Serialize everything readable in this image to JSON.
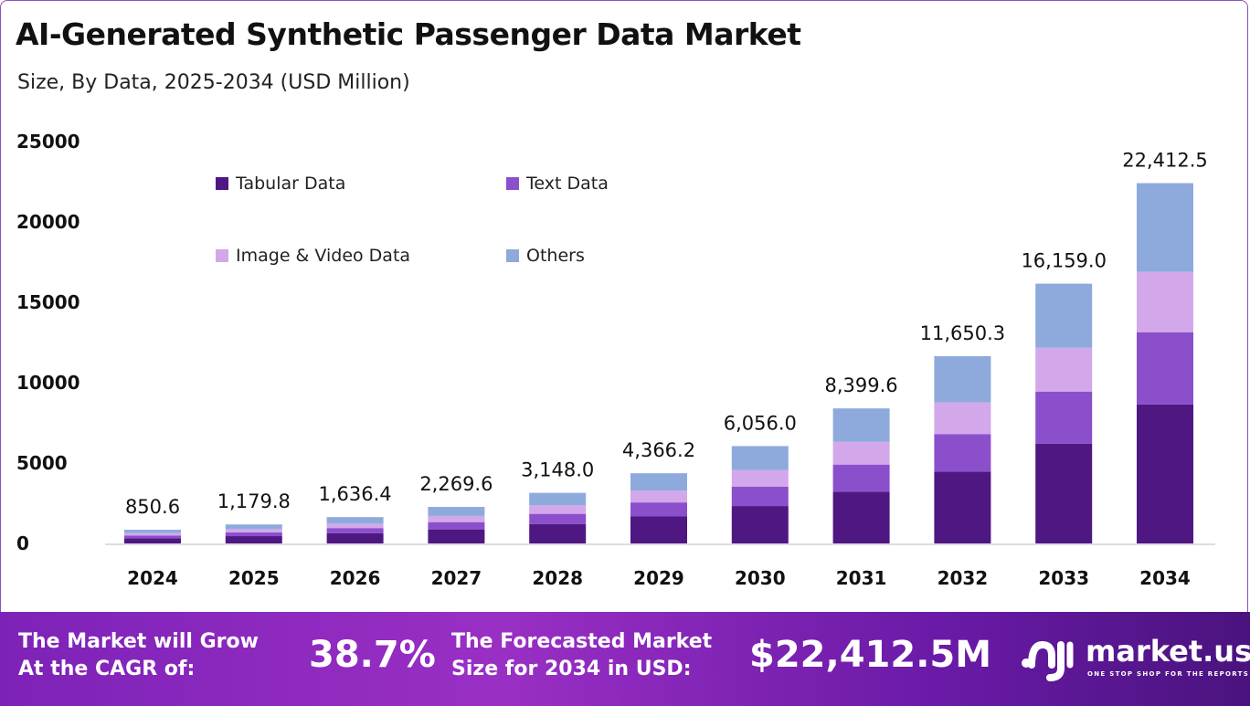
{
  "title": "AI-Generated Synthetic Passenger Data Market",
  "subtitle": "Size, By Data, 2025-2034 (USD Million)",
  "chart_data": {
    "type": "bar",
    "stacked": true,
    "categories": [
      "2024",
      "2025",
      "2026",
      "2027",
      "2028",
      "2029",
      "2030",
      "2031",
      "2032",
      "2033",
      "2034"
    ],
    "totals": [
      "850.6",
      "1,179.8",
      "1,636.4",
      "2,269.6",
      "3,148.0",
      "4,366.2",
      "6,056.0",
      "8,399.6",
      "11,650.3",
      "16,159.0",
      "22,412.5"
    ],
    "series": [
      {
        "name": "Tabular Data",
        "color": "#4e1782",
        "values": [
          326.6,
          453.0,
          628.4,
          871.5,
          1208.8,
          1676.6,
          2325.5,
          3225.4,
          4473.7,
          6210,
          8653
        ]
      },
      {
        "name": "Text Data",
        "color": "#8b4fcc",
        "values": [
          170.1,
          236.0,
          327.3,
          453.9,
          629.6,
          873.2,
          1211.2,
          1679.9,
          2330.1,
          3238,
          4489
        ]
      },
      {
        "name": "Image & Video Data",
        "color": "#d3a8ea",
        "values": [
          143.8,
          199.4,
          276.5,
          383.6,
          532.0,
          737.9,
          1023.5,
          1419.5,
          1968.9,
          2727,
          3750
        ]
      },
      {
        "name": "Others",
        "color": "#8eaadd",
        "values": [
          210.1,
          291.4,
          404.2,
          560.6,
          777.6,
          1078.5,
          1495.8,
          2074.8,
          2877.6,
          3984,
          5520.5
        ]
      }
    ],
    "yticks": [
      "0",
      "5000",
      "10000",
      "15000",
      "20000",
      "25000"
    ],
    "ylim": [
      0,
      25000
    ],
    "grid": false,
    "legend": "top-left"
  },
  "footer": {
    "cagr_label_1": "The Market will Grow",
    "cagr_label_2": "At the CAGR of:",
    "cagr_value": "38.7%",
    "forecast_label_1": "The Forecasted Market",
    "forecast_label_2": "Size for 2034 in USD:",
    "forecast_value": "$22,412.5M",
    "brand": "market.us",
    "tagline": "ONE STOP SHOP FOR THE REPORTS"
  }
}
